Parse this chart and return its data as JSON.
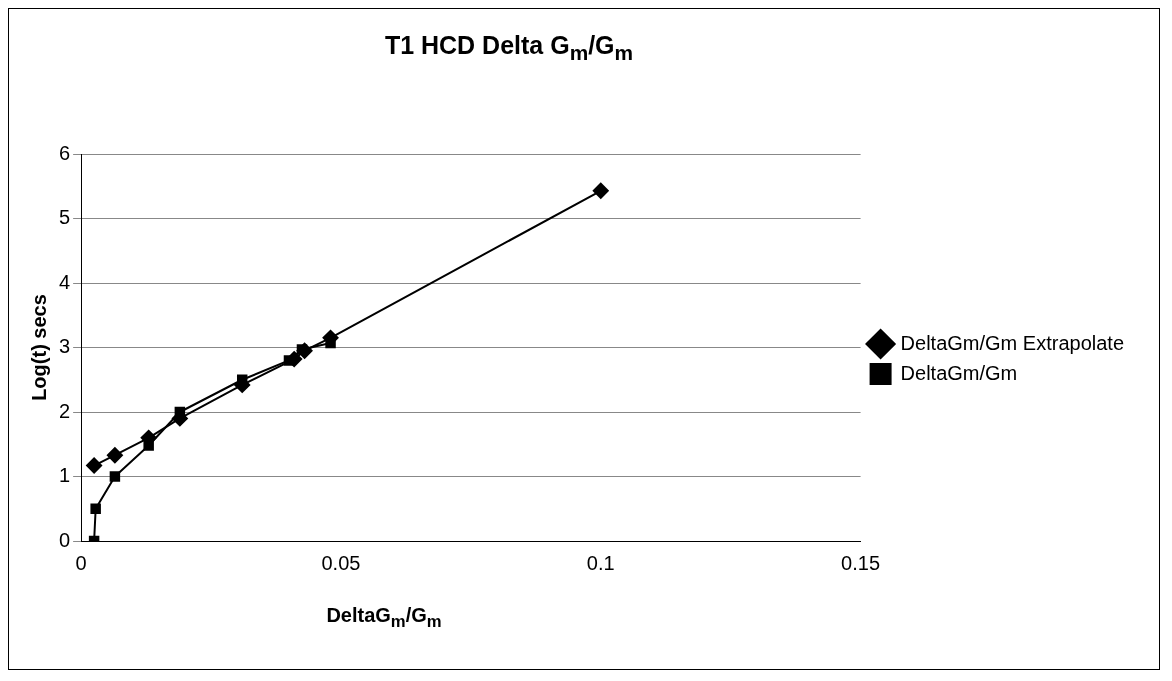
{
  "chart_data": {
    "type": "line",
    "title": "T1 HCD Delta G$_{m}$/G$_{m}$",
    "xlabel": "DeltaG$_{m}$/G$_{m}$",
    "ylabel": "Log(t) secs",
    "xlim": [
      0,
      0.15
    ],
    "xticks": [
      0,
      0.05,
      0.1,
      0.15
    ],
    "ylim": [
      0,
      6
    ],
    "yticks": [
      0,
      1,
      2,
      3,
      4,
      5,
      6
    ],
    "grid": "y",
    "legend": "right",
    "series": [
      {
        "name": "DeltaGm/Gm Extrapolate",
        "color": "#000000",
        "marker": "diamond",
        "x": [
          0.0025,
          0.0065,
          0.013,
          0.019,
          0.031,
          0.041,
          0.043,
          0.048,
          0.1
        ],
        "values": [
          1.17,
          1.33,
          1.6,
          1.9,
          2.42,
          2.82,
          2.95,
          3.15,
          5.43
        ]
      },
      {
        "name": "DeltaGm/Gm",
        "color": "#000000",
        "marker": "square",
        "x": [
          0.0025,
          0.0028,
          0.0065,
          0.013,
          0.019,
          0.031,
          0.04,
          0.0425,
          0.048
        ],
        "values": [
          0,
          0.5,
          1.0,
          1.48,
          2.0,
          2.5,
          2.8,
          2.97,
          3.07
        ]
      }
    ]
  }
}
